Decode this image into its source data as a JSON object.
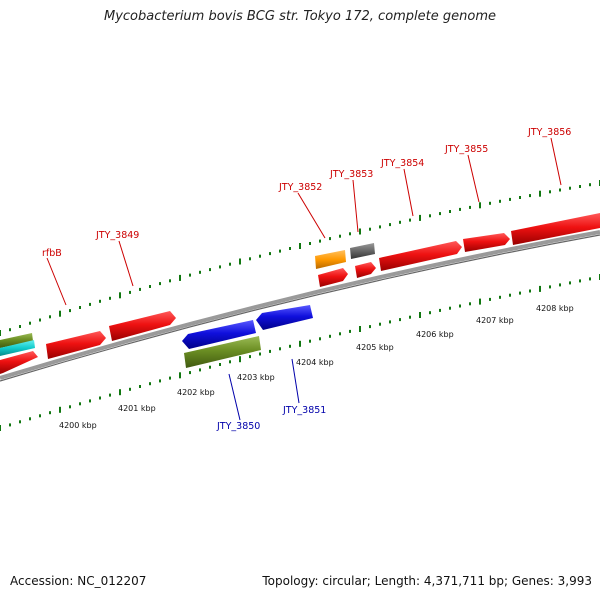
{
  "title": "Mycobacterium bovis BCG str. Tokyo 172, complete genome",
  "footer": {
    "accession": "Accession: NC_012207",
    "summary": "Topology: circular; Length: 4,371,711 bp; Genes: 3,993"
  },
  "colors": {
    "forward_gene": "#ee1111",
    "reverse_gene": "#1010dd",
    "backbone": "#808080",
    "tick": "#117711",
    "forward_label": "#cc0000",
    "reverse_label": "#0000aa",
    "olive": "#6b8e23",
    "cyan": "#11cccc",
    "orange": "#ff9900",
    "gray": "#666666"
  },
  "scale_labels": [
    "4200 kbp",
    "4201 kbp",
    "4202 kbp",
    "4203 kbp",
    "4204 kbp",
    "4205 kbp",
    "4206 kbp",
    "4207 kbp",
    "4208 kbp"
  ],
  "gene_labels": [
    {
      "name": "rfbB",
      "strand": "forward"
    },
    {
      "name": "JTY_3849",
      "strand": "forward"
    },
    {
      "name": "JTY_3850",
      "strand": "reverse"
    },
    {
      "name": "JTY_3851",
      "strand": "reverse"
    },
    {
      "name": "JTY_3852",
      "strand": "forward"
    },
    {
      "name": "JTY_3853",
      "strand": "forward"
    },
    {
      "name": "JTY_3854",
      "strand": "forward"
    },
    {
      "name": "JTY_3855",
      "strand": "forward"
    },
    {
      "name": "JTY_3856",
      "strand": "forward"
    }
  ]
}
